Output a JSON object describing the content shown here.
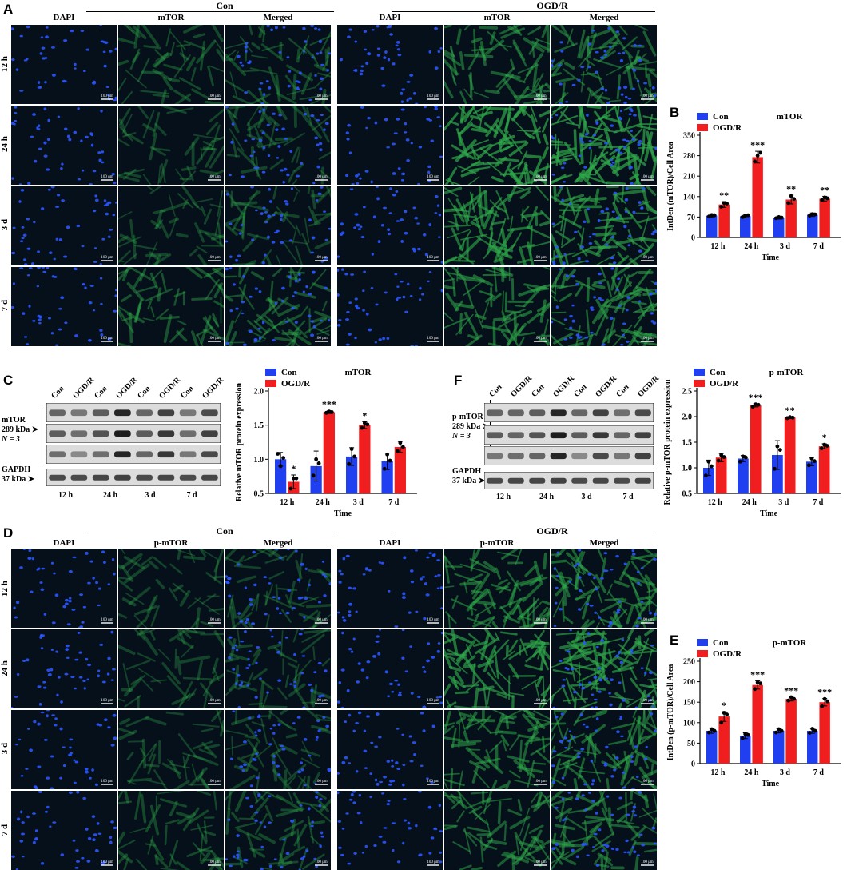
{
  "colors": {
    "con": "#1f3ff0",
    "ogdr": "#f01e1e",
    "tile_bg": "#06101a",
    "nuclei": "#2a55ff",
    "green": "#2fa84a"
  },
  "panelA": {
    "letter": "A",
    "groups": [
      "Con",
      "OGD/R"
    ],
    "columns": [
      "DAPI",
      "mTOR",
      "Merged"
    ],
    "rows": [
      "12 h",
      "24 h",
      "3 d",
      "7 d"
    ],
    "scale_bar": "100 μm"
  },
  "panelD": {
    "letter": "D",
    "groups": [
      "Con",
      "OGD/R"
    ],
    "columns": [
      "DAPI",
      "p-mTOR",
      "Merged"
    ],
    "rows": [
      "12 h",
      "24 h",
      "3 d",
      "7 d"
    ],
    "scale_bar": "100 μm"
  },
  "panelC": {
    "letter": "C",
    "lanes": [
      "Con",
      "OGD/R",
      "Con",
      "OGD/R",
      "Con",
      "OGD/R",
      "Con",
      "OGD/R"
    ],
    "label_protein": "mTOR",
    "label_kda": "289 kDa",
    "label_n": "N = 3",
    "label_gapdh": "GAPDH",
    "label_gapdh_kda": "37 kDa",
    "times": [
      "12 h",
      "24 h",
      "3 d",
      "7 d"
    ]
  },
  "panelF": {
    "letter": "F",
    "lanes": [
      "Con",
      "OGD/R",
      "Con",
      "OGD/R",
      "Con",
      "OGD/R",
      "Con",
      "OGD/R"
    ],
    "label_protein": "p-mTOR",
    "label_kda": "289 kDa",
    "label_n": "N = 3",
    "label_gapdh": "GAPDH",
    "label_gapdh_kda": "37 kDa",
    "times": [
      "12 h",
      "24 h",
      "3 d",
      "7 d"
    ]
  },
  "chart_data": [
    {
      "id": "B",
      "letter": "B",
      "type": "bar",
      "title": "mTOR",
      "xlabel": "Time",
      "ylabel": "IntDen (mTOR)/Cell Area",
      "categories": [
        "12 h",
        "24 h",
        "3 d",
        "7 d"
      ],
      "ylim": [
        0,
        350
      ],
      "yticks": [
        0,
        70,
        140,
        210,
        280,
        350
      ],
      "series": [
        {
          "name": "Con",
          "values": [
            75,
            73,
            68,
            78
          ],
          "errors": [
            6,
            6,
            5,
            6
          ],
          "points": [
            [
              72,
              77,
              76
            ],
            [
              70,
              74,
              76
            ],
            [
              66,
              70,
              68
            ],
            [
              75,
              80,
              79
            ]
          ]
        },
        {
          "name": "OGD/R",
          "values": [
            113,
            275,
            130,
            133
          ],
          "errors": [
            10,
            20,
            15,
            8
          ],
          "points": [
            [
              105,
              118,
              116
            ],
            [
              260,
              280,
              290
            ],
            [
              118,
              142,
              132
            ],
            [
              128,
              137,
              134
            ]
          ]
        }
      ],
      "significance": [
        "**",
        "***",
        "**",
        "**"
      ],
      "legend": "top-left"
    },
    {
      "id": "C",
      "letter": "",
      "type": "bar",
      "title": "mTOR",
      "xlabel": "Time",
      "ylabel": "Relative mTOR protein expression",
      "categories": [
        "12 h",
        "24 h",
        "3 d",
        "7 d"
      ],
      "ylim": [
        0.5,
        2.0
      ],
      "yticks": [
        0.5,
        1.0,
        1.5,
        2.0
      ],
      "series": [
        {
          "name": "Con",
          "values": [
            1.0,
            0.9,
            1.04,
            0.97
          ],
          "errors": [
            0.1,
            0.22,
            0.13,
            0.12
          ],
          "points": [
            [
              1.08,
              0.9,
              1.02
            ],
            [
              0.76,
              1.0,
              0.94
            ],
            [
              0.93,
              1.15,
              1.04
            ],
            [
              0.86,
              1.07,
              0.98
            ]
          ]
        },
        {
          "name": "OGD/R",
          "values": [
            0.67,
            1.69,
            1.5,
            1.18
          ],
          "errors": [
            0.1,
            0.02,
            0.05,
            0.08
          ],
          "points": [
            [
              0.57,
              0.72,
              0.72
            ],
            [
              1.68,
              1.7,
              1.69
            ],
            [
              1.46,
              1.53,
              1.51
            ],
            [
              1.12,
              1.24,
              1.18
            ]
          ]
        }
      ],
      "significance": [
        "*",
        "***",
        "*",
        ""
      ],
      "legend": "top-left"
    },
    {
      "id": "F",
      "letter": "",
      "type": "bar",
      "title": "p-mTOR",
      "xlabel": "Time",
      "ylabel": "Relative p-mTOR protein expression",
      "categories": [
        "12 h",
        "24 h",
        "3 d",
        "7 d"
      ],
      "ylim": [
        0.5,
        2.5
      ],
      "yticks": [
        0.5,
        1.0,
        1.5,
        2.0,
        2.5
      ],
      "series": [
        {
          "name": "Con",
          "values": [
            1.0,
            1.18,
            1.25,
            1.12
          ],
          "errors": [
            0.15,
            0.06,
            0.28,
            0.08
          ],
          "points": [
            [
              0.85,
              1.12,
              1.03
            ],
            [
              1.12,
              1.22,
              1.2
            ],
            [
              0.98,
              1.42,
              1.35
            ],
            [
              1.05,
              1.18,
              1.13
            ]
          ]
        },
        {
          "name": "OGD/R",
          "values": [
            1.2,
            2.22,
            1.98,
            1.42
          ],
          "errors": [
            0.08,
            0.03,
            0.02,
            0.05
          ],
          "points": [
            [
              1.14,
              1.25,
              1.21
            ],
            [
              2.19,
              2.24,
              2.23
            ],
            [
              1.97,
              1.99,
              1.98
            ],
            [
              1.38,
              1.45,
              1.43
            ]
          ]
        }
      ],
      "significance": [
        "",
        "***",
        "**",
        "*"
      ],
      "legend": "top-left"
    },
    {
      "id": "E",
      "letter": "E",
      "type": "bar",
      "title": "p-mTOR",
      "xlabel": "Time",
      "ylabel": "IntDen (p-mTOR)/Cell Area",
      "categories": [
        "12 h",
        "24 h",
        "3 d",
        "7 d"
      ],
      "ylim": [
        0,
        250
      ],
      "yticks": [
        0,
        50,
        100,
        150,
        200,
        250
      ],
      "series": [
        {
          "name": "Con",
          "values": [
            80,
            68,
            80,
            80
          ],
          "errors": [
            6,
            7,
            5,
            6
          ],
          "points": [
            [
              76,
              84,
              80
            ],
            [
              62,
              72,
              70
            ],
            [
              76,
              84,
              80
            ],
            [
              75,
              85,
              80
            ]
          ]
        },
        {
          "name": "OGD/R",
          "values": [
            115,
            192,
            158,
            150
          ],
          "errors": [
            12,
            10,
            5,
            9
          ],
          "points": [
            [
              100,
              124,
              120
            ],
            [
              182,
              198,
              196
            ],
            [
              154,
              162,
              158
            ],
            [
              140,
              158,
              152
            ]
          ]
        }
      ],
      "significance": [
        "*",
        "***",
        "***",
        "***"
      ],
      "legend": "top-left"
    }
  ]
}
